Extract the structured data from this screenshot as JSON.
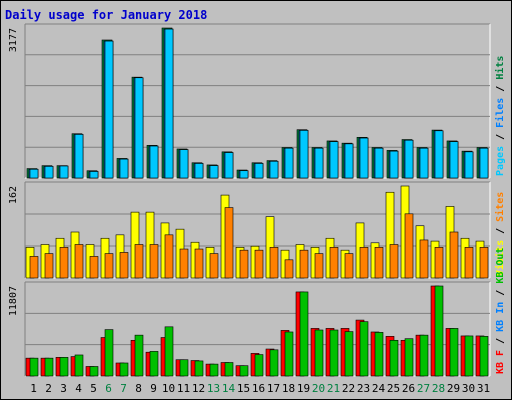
{
  "title": "Daily usage for January 2018",
  "colors": {
    "pages": "#00c8ff",
    "files": "#0080ff",
    "hits": "#008040",
    "visits": "#ffff00",
    "sites": "#ff8000",
    "kbf": "#ff0000",
    "kbin": "#0080ff",
    "kbout": "#00c000",
    "weekend": "#008040",
    "plot_bg": "#c0c0c0",
    "grid": "#808080"
  },
  "chart_data": [
    {
      "type": "bar",
      "name": "pages-files-hits",
      "categories": [
        "1",
        "2",
        "3",
        "4",
        "5",
        "6",
        "7",
        "8",
        "9",
        "10",
        "11",
        "12",
        "13",
        "14",
        "15",
        "16",
        "17",
        "18",
        "19",
        "20",
        "21",
        "22",
        "23",
        "24",
        "25",
        "26",
        "27",
        "28",
        "29",
        "30",
        "31"
      ],
      "weekend_days": [
        "6",
        "7",
        "13",
        "14",
        "20",
        "21",
        "27",
        "28"
      ],
      "ymax_label": "3177",
      "ylim": [
        0,
        3177
      ],
      "legend": [
        "Pages",
        "Files",
        "Hits"
      ],
      "series": [
        {
          "name": "Hits",
          "values": [
            200,
            262,
            262,
            938,
            154,
            2923,
            415,
            2136,
            692,
            3177,
            615,
            323,
            277,
            554,
            169,
            323,
            369,
            646,
            1023,
            646,
            785,
            738,
            862,
            646,
            585,
            815,
            646,
            1015,
            785,
            569,
            646
          ]
        },
        {
          "name": "Files",
          "values": [
            185,
            246,
            254,
            923,
            138,
            2900,
            400,
            2123,
            677,
            3154,
            600,
            308,
            262,
            538,
            154,
            308,
            354,
            631,
            1008,
            631,
            769,
            723,
            846,
            631,
            569,
            800,
            631,
            1000,
            769,
            554,
            631
          ]
        },
        {
          "name": "Pages",
          "values": [
            185,
            246,
            254,
            923,
            138,
            2900,
            400,
            2123,
            677,
            3154,
            600,
            308,
            262,
            538,
            154,
            308,
            354,
            631,
            1008,
            631,
            769,
            723,
            846,
            631,
            569,
            800,
            631,
            1000,
            769,
            554,
            631
          ]
        }
      ]
    },
    {
      "type": "bar",
      "name": "visits-sites",
      "categories": [
        "1",
        "2",
        "3",
        "4",
        "5",
        "6",
        "7",
        "8",
        "9",
        "10",
        "11",
        "12",
        "13",
        "14",
        "15",
        "16",
        "17",
        "18",
        "19",
        "20",
        "21",
        "22",
        "23",
        "24",
        "25",
        "26",
        "27",
        "28",
        "29",
        "30",
        "31"
      ],
      "ymax_label": "162",
      "ylim": [
        0,
        162
      ],
      "legend": [
        "Visits",
        "Sites"
      ],
      "series": [
        {
          "name": "Visits",
          "values": [
            54,
            59,
            70,
            81,
            59,
            70,
            76,
            116,
            116,
            97,
            86,
            63,
            54,
            146,
            54,
            56,
            108,
            49,
            59,
            54,
            70,
            49,
            97,
            62,
            151,
            162,
            92,
            65,
            126,
            70,
            65
          ]
        },
        {
          "name": "Sites",
          "values": [
            38,
            43,
            54,
            59,
            38,
            43,
            45,
            59,
            59,
            76,
            51,
            51,
            43,
            124,
            49,
            49,
            54,
            32,
            49,
            43,
            54,
            43,
            54,
            54,
            59,
            113,
            67,
            54,
            81,
            54,
            54
          ]
        }
      ]
    },
    {
      "type": "bar",
      "name": "kb",
      "categories": [
        "1",
        "2",
        "3",
        "4",
        "5",
        "6",
        "7",
        "8",
        "9",
        "10",
        "11",
        "12",
        "13",
        "14",
        "15",
        "16",
        "17",
        "18",
        "19",
        "20",
        "21",
        "22",
        "23",
        "24",
        "25",
        "26",
        "27",
        "28",
        "29",
        "30",
        "31"
      ],
      "ymax_label": "11807",
      "ylim": [
        0,
        11807
      ],
      "legend": [
        "KB F",
        "KB In",
        "KB Out"
      ],
      "series": [
        {
          "name": "KB F",
          "values": [
            2342,
            2342,
            2446,
            2550,
            1249,
            5048,
            1706,
            4685,
            3123,
            5048,
            2134,
            2030,
            1561,
            1770,
            1353,
            2967,
            3539,
            5984,
            11027,
            6244,
            6244,
            6244,
            7337,
            5776,
            5204,
            4685,
            5360,
            11807,
            6244,
            5256,
            5256
          ]
        },
        {
          "name": "KB In",
          "values": [
            0,
            0,
            0,
            0,
            0,
            0,
            0,
            0,
            0,
            0,
            0,
            0,
            0,
            0,
            0,
            0,
            0,
            0,
            0,
            0,
            0,
            0,
            0,
            0,
            0,
            0,
            0,
            0,
            0,
            0,
            0
          ]
        },
        {
          "name": "KB Out",
          "values": [
            2342,
            2342,
            2446,
            2759,
            1249,
            6088,
            1706,
            5360,
            3227,
            6452,
            2134,
            1978,
            1561,
            1770,
            1353,
            2811,
            3435,
            5777,
            11027,
            6035,
            6035,
            5828,
            7129,
            5724,
            4685,
            4893,
            5360,
            11807,
            6244,
            5256,
            5204
          ]
        }
      ]
    }
  ]
}
